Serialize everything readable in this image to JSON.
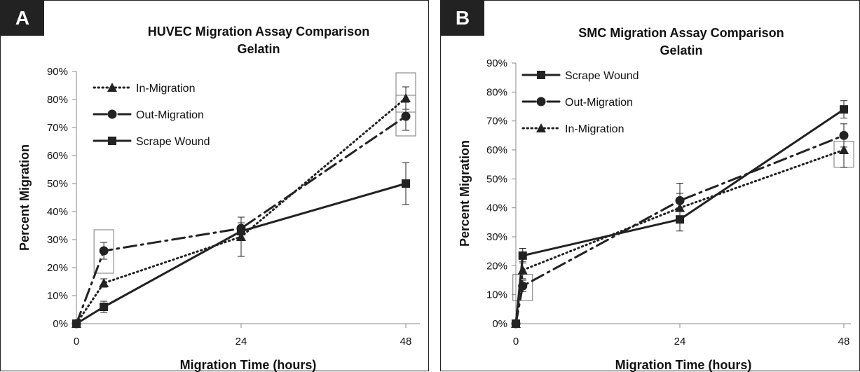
{
  "chart_data": [
    {
      "panel_label": "A",
      "type": "line",
      "title": "HUVEC Migration Assay Comparison",
      "subtitle": "Gelatin",
      "xlabel": "Migration Time (hours)",
      "ylabel": "Percent Migration",
      "x_ticks": [
        "0",
        "24",
        "48"
      ],
      "y_ticks": [
        "0%",
        "10%",
        "20%",
        "30%",
        "40%",
        "50%",
        "60%",
        "70%",
        "80%",
        "90%"
      ],
      "xlim": [
        0,
        48
      ],
      "ylim": [
        0,
        90
      ],
      "grid": false,
      "legend_position": "top-left",
      "series": [
        {
          "name": "In-Migration",
          "marker": "triangle",
          "dash": "dotted",
          "x": [
            0,
            4,
            24,
            48
          ],
          "y": [
            0,
            14.5,
            31,
            80.5
          ],
          "err": [
            0,
            1.5,
            7,
            4
          ]
        },
        {
          "name": "Out-Migration",
          "marker": "circle",
          "dash": "dash-dot",
          "x": [
            0,
            4,
            24,
            48
          ],
          "y": [
            0,
            26,
            34,
            74
          ],
          "err": [
            0,
            3,
            4,
            5
          ]
        },
        {
          "name": "Scrape Wound",
          "marker": "square",
          "dash": "solid",
          "x": [
            0,
            4,
            24,
            48
          ],
          "y": [
            0,
            6,
            33,
            50
          ],
          "err": [
            0,
            2,
            3,
            7.5
          ]
        }
      ],
      "highlight_boxes": [
        {
          "x": 4,
          "y_low": 18,
          "y_high": 33.5
        },
        {
          "x": 48,
          "y_low": 67,
          "y_high": 89.5
        },
        {
          "x": 48,
          "y_low": 75.5,
          "y_high": 81.5
        }
      ]
    },
    {
      "panel_label": "B",
      "type": "line",
      "title": "SMC Migration Assay Comparison",
      "subtitle": "Gelatin",
      "xlabel": "Migration Time (hours)",
      "ylabel": "Percent Migration",
      "x_ticks": [
        "0",
        "24",
        "48"
      ],
      "y_ticks": [
        "0%",
        "10%",
        "20%",
        "30%",
        "40%",
        "50%",
        "60%",
        "70%",
        "80%",
        "90%"
      ],
      "xlim": [
        0,
        48
      ],
      "ylim": [
        0,
        90
      ],
      "grid": false,
      "legend_position": "top-left",
      "series": [
        {
          "name": "Scrape Wound",
          "marker": "square",
          "dash": "solid",
          "x": [
            0,
            1,
            24,
            48
          ],
          "y": [
            0,
            23.5,
            36,
            74
          ],
          "err": [
            0,
            2.5,
            4,
            3
          ]
        },
        {
          "name": "Out-Migration",
          "marker": "circle",
          "dash": "dash-dot",
          "x": [
            0,
            1,
            24,
            48
          ],
          "y": [
            0,
            13,
            42.5,
            65
          ],
          "err": [
            0,
            2,
            6,
            4
          ]
        },
        {
          "name": "In-Migration",
          "marker": "triangle",
          "dash": "dotted",
          "x": [
            0,
            1,
            24,
            48
          ],
          "y": [
            0,
            18.5,
            40,
            60
          ],
          "err": [
            0,
            3,
            5,
            6
          ]
        }
      ],
      "highlight_boxes": [
        {
          "x": 1,
          "y_low": 8,
          "y_high": 17
        },
        {
          "x": 48,
          "y_low": 54,
          "y_high": 63
        }
      ]
    }
  ]
}
